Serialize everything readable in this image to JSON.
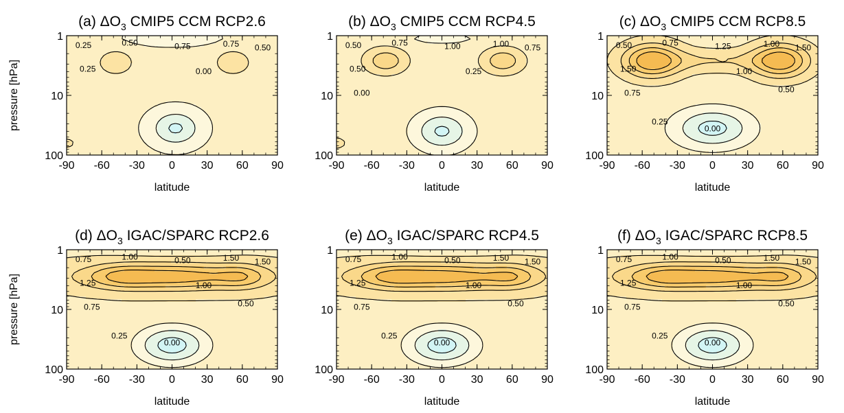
{
  "colors": {
    "band_lt_0": "#d2f5f5",
    "band_0_025": "#e6f5e6",
    "band_025_050": "#fdf7dc",
    "band_050_075": "#fdefc3",
    "band_075_100": "#fce3a3",
    "band_100_125": "#fad88a",
    "band_125_150": "#f8cb6c",
    "band_gt_150": "#f5bb52",
    "line": "#000000"
  },
  "chart_data": [
    {
      "type": "contour",
      "title_parts": [
        "(a) ",
        "ΔO",
        "3",
        " CMIP5 CCM RCP2.6"
      ],
      "xlabel": "latitude",
      "ylabel": "pressure [hPa]",
      "x_ticks": [
        "-90",
        "-60",
        "-30",
        "0",
        "30",
        "60",
        "90"
      ],
      "y_ticks": [
        "1",
        "10",
        "100"
      ],
      "xlim": [
        -90,
        90
      ],
      "ylim": [
        100,
        1
      ],
      "y_scale": "log",
      "levels": [
        0.0,
        0.25,
        0.5,
        0.75,
        1.0,
        1.25,
        1.5
      ],
      "contour_labels": [
        "0.25",
        "0.50",
        "0.75",
        "0.75",
        "0.50",
        "0.25",
        "0.00"
      ],
      "field": {
        "bg": 0.55,
        "blobs": [
          {
            "lat": -48,
            "lp": 0.45,
            "sl": 16,
            "sp": 0.22,
            "a": 0.4
          },
          {
            "lat": 52,
            "lp": 0.45,
            "sl": 16,
            "sp": 0.22,
            "a": 0.4
          },
          {
            "lat": 0,
            "lp": 0.05,
            "sl": 40,
            "sp": 0.12,
            "a": -0.2
          },
          {
            "lat": 3,
            "lp": 1.55,
            "sl": 20,
            "sp": 0.28,
            "a": -0.6
          },
          {
            "lat": -90,
            "lp": 1.8,
            "sl": 10,
            "sp": 0.12,
            "a": 0.28
          }
        ]
      }
    },
    {
      "type": "contour",
      "title_parts": [
        "(b) ",
        "ΔO",
        "3",
        " CMIP5 CCM RCP4.5"
      ],
      "xlabel": "latitude",
      "ylabel": "",
      "x_ticks": [
        "-90",
        "-60",
        "-30",
        "0",
        "30",
        "60",
        "90"
      ],
      "y_ticks": [
        "1",
        "10",
        "100"
      ],
      "xlim": [
        -90,
        90
      ],
      "ylim": [
        100,
        1
      ],
      "y_scale": "log",
      "levels": [
        0.0,
        0.25,
        0.5,
        0.75,
        1.0,
        1.25,
        1.5
      ],
      "contour_labels": [
        "0.50",
        "0.75",
        "1.00",
        "1.00",
        "0.75",
        "0.50",
        "0.25",
        "0.00"
      ],
      "field": {
        "bg": 0.6,
        "blobs": [
          {
            "lat": -48,
            "lp": 0.42,
            "sl": 18,
            "sp": 0.22,
            "a": 0.58
          },
          {
            "lat": 52,
            "lp": 0.42,
            "sl": 18,
            "sp": 0.22,
            "a": 0.58
          },
          {
            "lat": 0,
            "lp": 0.05,
            "sl": 40,
            "sp": 0.12,
            "a": -0.15
          },
          {
            "lat": 0,
            "lp": 1.6,
            "sl": 22,
            "sp": 0.3,
            "a": -0.65
          },
          {
            "lat": -90,
            "lp": 1.8,
            "sl": 10,
            "sp": 0.12,
            "a": 0.25
          }
        ]
      }
    },
    {
      "type": "contour",
      "title_parts": [
        "(c) ",
        "ΔO",
        "3",
        " CMIP5 CCM RCP8.5"
      ],
      "xlabel": "latitude",
      "ylabel": "",
      "x_ticks": [
        "-90",
        "-60",
        "-30",
        "0",
        "30",
        "60",
        "90"
      ],
      "y_ticks": [
        "1",
        "10",
        "100"
      ],
      "xlim": [
        -90,
        90
      ],
      "ylim": [
        100,
        1
      ],
      "y_scale": "log",
      "levels": [
        0.0,
        0.25,
        0.5,
        0.75,
        1.0,
        1.25,
        1.5
      ],
      "contour_labels": [
        "0.50",
        "0.75",
        "1.25",
        "1.00",
        "1.50",
        "1.50",
        "1.00",
        "0.75",
        "0.50",
        "0.25",
        "0.00"
      ],
      "field": {
        "bg": 0.65,
        "blobs": [
          {
            "lat": -52,
            "lp": 0.42,
            "sl": 24,
            "sp": 0.28,
            "a": 1.05
          },
          {
            "lat": 58,
            "lp": 0.42,
            "sl": 24,
            "sp": 0.28,
            "a": 1.05
          },
          {
            "lat": 0,
            "lp": 0.42,
            "sl": 50,
            "sp": 0.18,
            "a": 0.35
          },
          {
            "lat": 0,
            "lp": 1.55,
            "sl": 32,
            "sp": 0.32,
            "a": -0.75
          },
          {
            "lat": -90,
            "lp": 1.5,
            "sl": 14,
            "sp": 0.35,
            "a": -0.1
          }
        ]
      }
    },
    {
      "type": "contour",
      "title_parts": [
        "(d) ",
        "ΔO",
        "3",
        " IGAC/SPARC RCP2.6"
      ],
      "xlabel": "latitude",
      "ylabel": "pressure [hPa]",
      "x_ticks": [
        "-90",
        "-60",
        "-30",
        "0",
        "30",
        "60",
        "90"
      ],
      "y_ticks": [
        "1",
        "10",
        "100"
      ],
      "xlim": [
        -90,
        90
      ],
      "ylim": [
        100,
        1
      ],
      "y_scale": "log",
      "levels": [
        0.0,
        0.25,
        0.5,
        0.75,
        1.0,
        1.25,
        1.5
      ],
      "contour_labels": [
        "0.75",
        "1.00",
        "0.50",
        "1.50",
        "1.50",
        "1.25",
        "1.00",
        "0.75",
        "0.50",
        "0.25",
        "0.00"
      ],
      "field": {
        "bg": 0.72,
        "blobs": [
          {
            "lat": 0,
            "lp": 0.45,
            "sl": 75,
            "sp": 0.22,
            "a": 0.95
          },
          {
            "lat": -45,
            "lp": 0.45,
            "sl": 25,
            "sp": 0.2,
            "a": 0.3
          },
          {
            "lat": 60,
            "lp": 0.45,
            "sl": 20,
            "sp": 0.2,
            "a": 0.35
          },
          {
            "lat": 0,
            "lp": 1.6,
            "sl": 30,
            "sp": 0.32,
            "a": -0.85
          },
          {
            "lat": 0,
            "lp": 0.0,
            "sl": 50,
            "sp": 0.1,
            "a": -0.2
          }
        ]
      }
    },
    {
      "type": "contour",
      "title_parts": [
        "(e) ",
        "ΔO",
        "3",
        " IGAC/SPARC RCP4.5"
      ],
      "xlabel": "latitude",
      "ylabel": "",
      "x_ticks": [
        "-90",
        "-60",
        "-30",
        "0",
        "30",
        "60",
        "90"
      ],
      "y_ticks": [
        "1",
        "10",
        "100"
      ],
      "xlim": [
        -90,
        90
      ],
      "ylim": [
        100,
        1
      ],
      "y_scale": "log",
      "levels": [
        0.0,
        0.25,
        0.5,
        0.75,
        1.0,
        1.25,
        1.5
      ],
      "contour_labels": [
        "0.75",
        "1.00",
        "0.50",
        "1.50",
        "1.50",
        "1.25",
        "1.00",
        "0.75",
        "0.50",
        "0.25",
        "0.00"
      ],
      "field": {
        "bg": 0.72,
        "blobs": [
          {
            "lat": 0,
            "lp": 0.45,
            "sl": 75,
            "sp": 0.22,
            "a": 0.95
          },
          {
            "lat": -45,
            "lp": 0.45,
            "sl": 25,
            "sp": 0.2,
            "a": 0.3
          },
          {
            "lat": 60,
            "lp": 0.45,
            "sl": 20,
            "sp": 0.2,
            "a": 0.35
          },
          {
            "lat": 0,
            "lp": 1.6,
            "sl": 30,
            "sp": 0.32,
            "a": -0.85
          },
          {
            "lat": 0,
            "lp": 0.0,
            "sl": 50,
            "sp": 0.1,
            "a": -0.2
          }
        ]
      }
    },
    {
      "type": "contour",
      "title_parts": [
        "(f) ",
        "ΔO",
        "3",
        " IGAC/SPARC RCP8.5"
      ],
      "xlabel": "latitude",
      "ylabel": "",
      "x_ticks": [
        "-90",
        "-60",
        "-30",
        "0",
        "30",
        "60",
        "90"
      ],
      "y_ticks": [
        "1",
        "10",
        "100"
      ],
      "xlim": [
        -90,
        90
      ],
      "ylim": [
        100,
        1
      ],
      "y_scale": "log",
      "levels": [
        0.0,
        0.25,
        0.5,
        0.75,
        1.0,
        1.25,
        1.5
      ],
      "contour_labels": [
        "0.75",
        "1.00",
        "0.50",
        "1.50",
        "1.50",
        "1.25",
        "1.00",
        "0.75",
        "0.50",
        "0.25",
        "0.00"
      ],
      "field": {
        "bg": 0.72,
        "blobs": [
          {
            "lat": 0,
            "lp": 0.45,
            "sl": 75,
            "sp": 0.22,
            "a": 0.95
          },
          {
            "lat": -45,
            "lp": 0.45,
            "sl": 25,
            "sp": 0.2,
            "a": 0.3
          },
          {
            "lat": 60,
            "lp": 0.45,
            "sl": 20,
            "sp": 0.2,
            "a": 0.35
          },
          {
            "lat": 0,
            "lp": 1.6,
            "sl": 30,
            "sp": 0.32,
            "a": -0.85
          },
          {
            "lat": 0,
            "lp": 0.0,
            "sl": 50,
            "sp": 0.1,
            "a": -0.2
          }
        ]
      }
    }
  ]
}
